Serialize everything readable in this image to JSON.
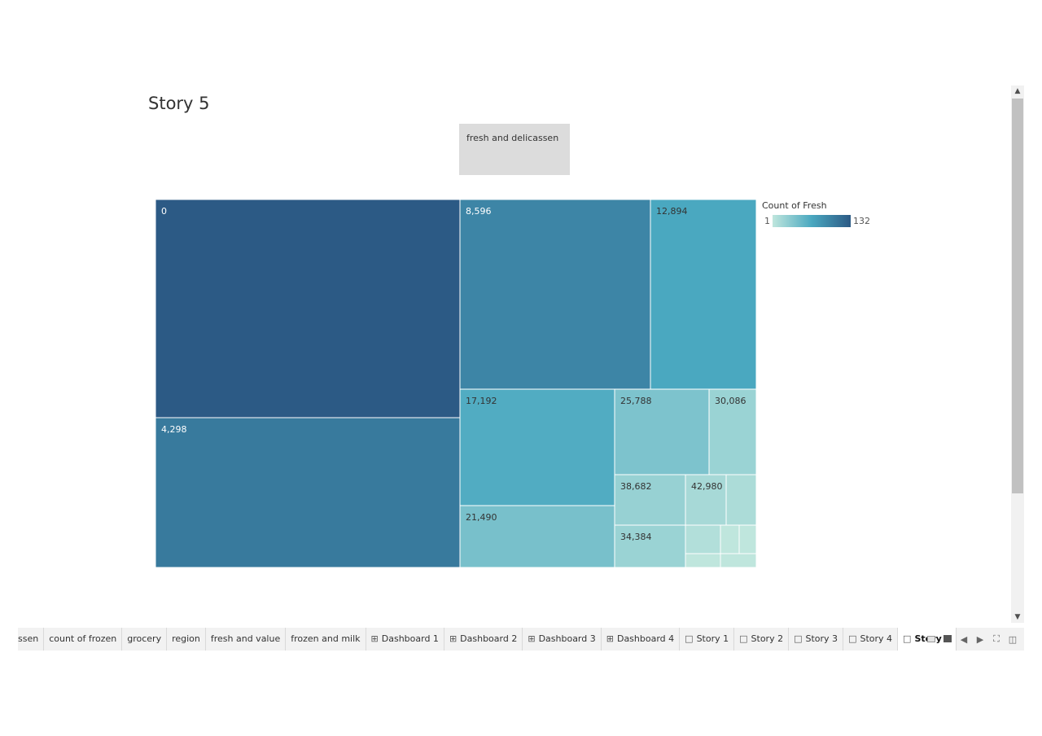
{
  "story": {
    "title": "Story 5",
    "caption": "fresh and delicassen"
  },
  "legend": {
    "title": "Count of Fresh",
    "min": "1",
    "max": "132",
    "colors": [
      "#bfe6dd",
      "#4aa8c0",
      "#2c5a85"
    ]
  },
  "chart_data": {
    "type": "treemap",
    "size_measure": "Count of Fresh",
    "color_measure": "Count of Fresh",
    "color_range": [
      1,
      132
    ],
    "nodes": [
      {
        "label": "0",
        "value": 132
      },
      {
        "label": "4,298",
        "value": 90
      },
      {
        "label": "8,596",
        "value": 77
      },
      {
        "label": "12,894",
        "value": 42
      },
      {
        "label": "17,192",
        "value": 38
      },
      {
        "label": "21,490",
        "value": 19
      },
      {
        "label": "25,788",
        "value": 17
      },
      {
        "label": "30,086",
        "value": 7
      },
      {
        "label": "38,682",
        "value": 8
      },
      {
        "label": "42,980",
        "value": 4
      },
      {
        "label": "",
        "value": 3
      },
      {
        "label": "34,384",
        "value": 7
      },
      {
        "label": "",
        "value": 2
      },
      {
        "label": "",
        "value": 1
      },
      {
        "label": "",
        "value": 1
      },
      {
        "label": "",
        "value": 1
      },
      {
        "label": "",
        "value": 1
      }
    ]
  },
  "tabs": [
    {
      "label": "ssen",
      "icon": "",
      "active": false
    },
    {
      "label": "count of frozen",
      "icon": "",
      "active": false
    },
    {
      "label": "grocery",
      "icon": "",
      "active": false
    },
    {
      "label": "region",
      "icon": "",
      "active": false
    },
    {
      "label": "fresh and value",
      "icon": "",
      "active": false
    },
    {
      "label": "frozen and milk",
      "icon": "",
      "active": false
    },
    {
      "label": "Dashboard 1",
      "icon": "dashboard-icon",
      "active": false
    },
    {
      "label": "Dashboard 2",
      "icon": "dashboard-icon",
      "active": false
    },
    {
      "label": "Dashboard 3",
      "icon": "dashboard-icon",
      "active": false
    },
    {
      "label": "Dashboard 4",
      "icon": "dashboard-icon",
      "active": false
    },
    {
      "label": "Story 1",
      "icon": "story-icon",
      "active": false
    },
    {
      "label": "Story 2",
      "icon": "story-icon",
      "active": false
    },
    {
      "label": "Story 3",
      "icon": "story-icon",
      "active": false
    },
    {
      "label": "Story 4",
      "icon": "story-icon",
      "active": false
    },
    {
      "label": "Story 5",
      "icon": "story-icon",
      "active": true
    }
  ],
  "controls": [
    "show-filmstrip-icon",
    "show-tabs-icon",
    "prev-sheet-icon",
    "next-sheet-icon",
    "fullscreen-icon",
    "present-icon"
  ]
}
